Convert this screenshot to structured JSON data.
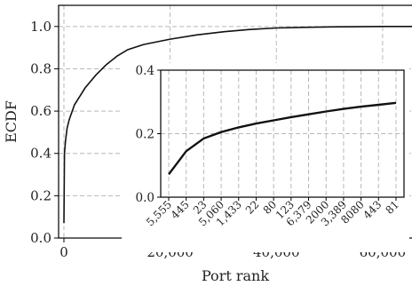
{
  "chart_data": [
    {
      "type": "line",
      "xlabel": "Port rank",
      "ylabel": "ECDF",
      "xlim": [
        -1000,
        65535
      ],
      "ylim": [
        0,
        1.1
      ],
      "xticks": [
        0,
        20000,
        40000,
        60000
      ],
      "xtick_labels": [
        "0",
        "20,000",
        "40,000",
        "60,000"
      ],
      "yticks": [
        0.0,
        0.2,
        0.4,
        0.6,
        0.8,
        1.0
      ],
      "ytick_labels": [
        "0.0",
        "0.2",
        "0.4",
        "0.6",
        "0.8",
        "1.0"
      ],
      "grid": true,
      "series": [
        {
          "x": [
            0,
            100,
            300,
            600,
            1000,
            2000,
            3000,
            4000,
            5000,
            6000,
            8000,
            10000,
            12000,
            15000,
            20000,
            25000,
            30000,
            35000,
            40000,
            45000,
            50000,
            55000,
            60000,
            65535
          ],
          "y": [
            0.07,
            0.4,
            0.46,
            0.52,
            0.56,
            0.63,
            0.67,
            0.71,
            0.74,
            0.77,
            0.82,
            0.86,
            0.89,
            0.915,
            0.94,
            0.96,
            0.975,
            0.986,
            0.993,
            0.996,
            0.998,
            0.999,
            1.0,
            1.0
          ]
        }
      ]
    },
    {
      "type": "line",
      "inset": true,
      "categories": [
        "5,555",
        "445",
        "23",
        "5,060",
        "1,433",
        "22",
        "80",
        "123",
        "6,379",
        "2000",
        "3,389",
        "8080",
        "443",
        "81"
      ],
      "ylim": [
        0,
        0.4
      ],
      "yticks": [
        0.0,
        0.2,
        0.4
      ],
      "ytick_labels": [
        "0.0",
        "0.2",
        "0.4"
      ],
      "grid": true,
      "series": [
        {
          "values": [
            0.072,
            0.145,
            0.185,
            0.205,
            0.22,
            0.232,
            0.242,
            0.252,
            0.261,
            0.27,
            0.278,
            0.285,
            0.291,
            0.297
          ]
        }
      ]
    }
  ]
}
